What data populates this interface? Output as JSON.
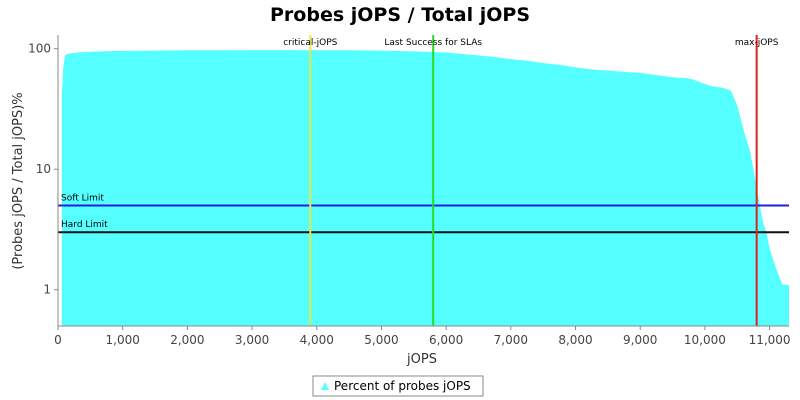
{
  "chart_data": {
    "type": "area",
    "title": "Probes jOPS / Total jOPS",
    "xlabel": "jOPS",
    "ylabel": "(Probes jOPS / Total jOPS)%",
    "xlim": [
      0,
      11300
    ],
    "ylim": [
      0.5,
      130
    ],
    "y_scale": "log",
    "grid": false,
    "legend_position": "bottom-center",
    "x_ticks": [
      {
        "value": 0,
        "label": "0"
      },
      {
        "value": 1000,
        "label": "1,000"
      },
      {
        "value": 2000,
        "label": "2,000"
      },
      {
        "value": 3000,
        "label": "3,000"
      },
      {
        "value": 4000,
        "label": "4,000"
      },
      {
        "value": 5000,
        "label": "5,000"
      },
      {
        "value": 6000,
        "label": "6,000"
      },
      {
        "value": 7000,
        "label": "7,000"
      },
      {
        "value": 8000,
        "label": "8,000"
      },
      {
        "value": 9000,
        "label": "9,000"
      },
      {
        "value": 10000,
        "label": "10,000"
      },
      {
        "value": 11000,
        "label": "11,000"
      }
    ],
    "y_ticks": [
      {
        "value": 1,
        "label": "1"
      },
      {
        "value": 10,
        "label": "10"
      },
      {
        "value": 100,
        "label": "100"
      }
    ],
    "series": [
      {
        "name": "Percent of probes jOPS",
        "color": "#55ffff",
        "x": [
          60,
          80,
          110,
          150,
          300,
          500,
          800,
          1000,
          1500,
          2000,
          2500,
          3000,
          3500,
          4000,
          4500,
          5000,
          5500,
          5800,
          6000,
          6300,
          6700,
          7000,
          7300,
          7500,
          7800,
          8000,
          8300,
          8500,
          8800,
          9000,
          9300,
          9500,
          9700,
          9800,
          10000,
          10100,
          10200,
          10300,
          10400,
          10500,
          10600,
          10700,
          10750,
          10800,
          10850,
          10900,
          10950,
          11000,
          11100,
          11200,
          11300
        ],
        "values": [
          42,
          70,
          88,
          91,
          93,
          94.5,
          95.5,
          96,
          96.5,
          97,
          97,
          97.5,
          97.5,
          97,
          97,
          96.5,
          95,
          94,
          93,
          90,
          86,
          82,
          79,
          76,
          73,
          70,
          67,
          66,
          64,
          63,
          60,
          58,
          57,
          56,
          51,
          49,
          48,
          47,
          45,
          34,
          21,
          14,
          10,
          7,
          5,
          3.6,
          3,
          2.2,
          1.5,
          1.1,
          1.1
        ]
      }
    ],
    "vertical_markers": [
      {
        "name": "critical-jOPS",
        "x": 3900,
        "color": "#e6e64a"
      },
      {
        "name": "Last Success for SLAs",
        "x": 5800,
        "color": "#22dd22"
      },
      {
        "name": "max-jOPS",
        "x": 10800,
        "color": "#dd2222"
      }
    ],
    "horizontal_markers": [
      {
        "name": "Soft Limit",
        "y": 5,
        "color": "#1f1fe0"
      },
      {
        "name": "Hard Limit",
        "y": 3,
        "color": "#111111"
      }
    ]
  }
}
